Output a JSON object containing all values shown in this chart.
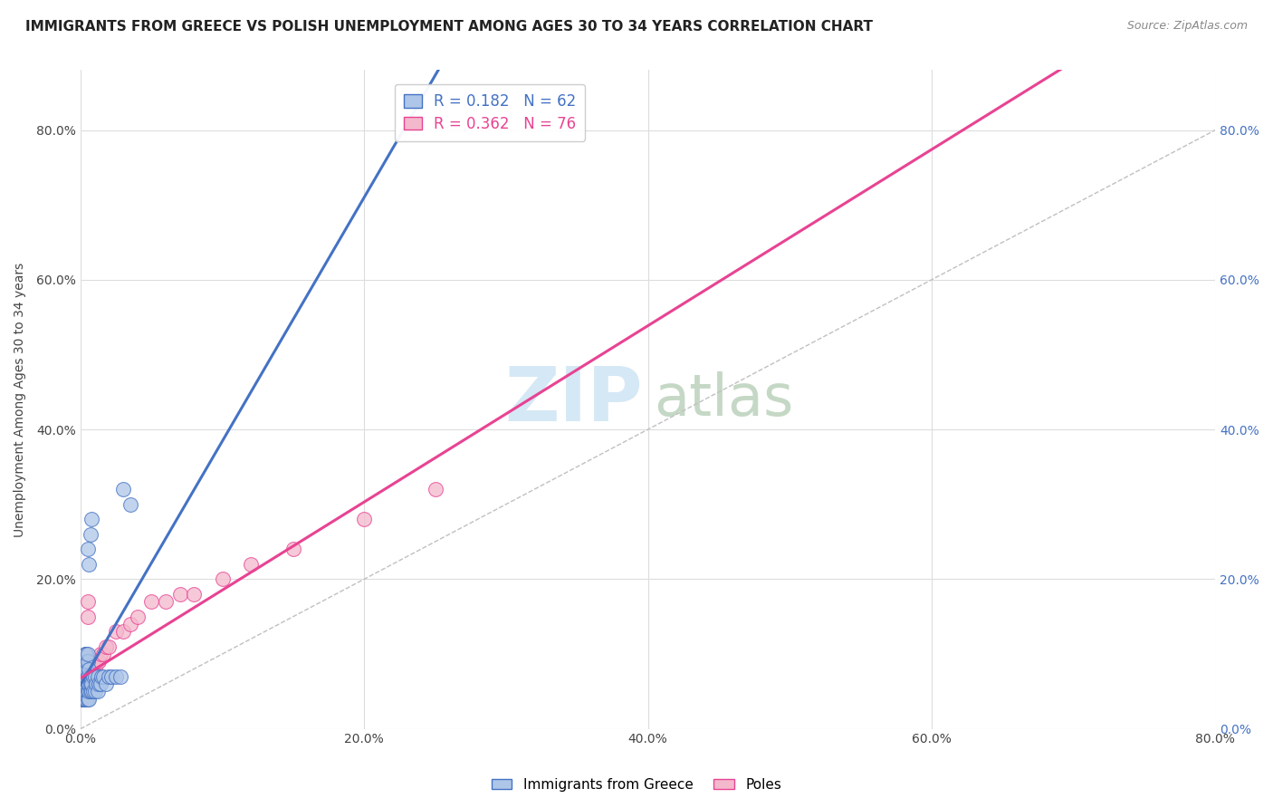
{
  "title": "IMMIGRANTS FROM GREECE VS POLISH UNEMPLOYMENT AMONG AGES 30 TO 34 YEARS CORRELATION CHART",
  "source": "Source: ZipAtlas.com",
  "ylabel": "Unemployment Among Ages 30 to 34 years",
  "xlim": [
    0.0,
    0.8
  ],
  "ylim": [
    0.0,
    0.88
  ],
  "x_ticks": [
    0.0,
    0.2,
    0.4,
    0.6,
    0.8
  ],
  "y_ticks": [
    0.0,
    0.2,
    0.4,
    0.6,
    0.8
  ],
  "legend_entries": [
    {
      "label": "Immigrants from Greece",
      "color": "#aec6e8",
      "edge": "#4472c4",
      "R": "0.182",
      "N": "62"
    },
    {
      "label": "Poles",
      "color": "#f4b8cc",
      "edge": "#e84393",
      "R": "0.362",
      "N": "76"
    }
  ],
  "greece_line_color": "#4472c4",
  "poles_line_color": "#e84393",
  "diagonal_color": "#c0c0c0",
  "title_fontsize": 11,
  "source_fontsize": 9,
  "label_fontsize": 10,
  "tick_fontsize": 10,
  "legend_fontsize": 12,
  "watermark_zip_color": "#d5e8f5",
  "watermark_atlas_color": "#c5d8c5",
  "watermark_fontsize": 60,
  "greece_scatter_x": [
    0.001,
    0.001,
    0.001,
    0.001,
    0.001,
    0.002,
    0.002,
    0.002,
    0.002,
    0.002,
    0.002,
    0.003,
    0.003,
    0.003,
    0.003,
    0.003,
    0.003,
    0.003,
    0.004,
    0.004,
    0.004,
    0.004,
    0.004,
    0.004,
    0.004,
    0.005,
    0.005,
    0.005,
    0.005,
    0.005,
    0.005,
    0.005,
    0.006,
    0.006,
    0.006,
    0.006,
    0.006,
    0.007,
    0.007,
    0.007,
    0.007,
    0.008,
    0.008,
    0.008,
    0.009,
    0.009,
    0.01,
    0.01,
    0.011,
    0.012,
    0.012,
    0.013,
    0.014,
    0.015,
    0.016,
    0.018,
    0.02,
    0.022,
    0.025,
    0.028,
    0.03,
    0.035
  ],
  "greece_scatter_y": [
    0.04,
    0.05,
    0.06,
    0.07,
    0.08,
    0.04,
    0.05,
    0.06,
    0.07,
    0.08,
    0.09,
    0.04,
    0.05,
    0.06,
    0.07,
    0.08,
    0.09,
    0.1,
    0.04,
    0.05,
    0.06,
    0.07,
    0.08,
    0.09,
    0.1,
    0.04,
    0.05,
    0.06,
    0.07,
    0.09,
    0.1,
    0.24,
    0.04,
    0.05,
    0.06,
    0.08,
    0.22,
    0.05,
    0.06,
    0.07,
    0.26,
    0.05,
    0.06,
    0.28,
    0.05,
    0.07,
    0.05,
    0.07,
    0.06,
    0.05,
    0.07,
    0.06,
    0.06,
    0.07,
    0.07,
    0.06,
    0.07,
    0.07,
    0.07,
    0.07,
    0.32,
    0.3
  ],
  "poles_scatter_x": [
    0.001,
    0.001,
    0.001,
    0.001,
    0.001,
    0.001,
    0.001,
    0.001,
    0.001,
    0.001,
    0.002,
    0.002,
    0.002,
    0.002,
    0.002,
    0.002,
    0.002,
    0.002,
    0.002,
    0.002,
    0.003,
    0.003,
    0.003,
    0.003,
    0.003,
    0.003,
    0.003,
    0.003,
    0.003,
    0.003,
    0.004,
    0.004,
    0.004,
    0.004,
    0.004,
    0.004,
    0.004,
    0.004,
    0.004,
    0.004,
    0.005,
    0.005,
    0.005,
    0.005,
    0.005,
    0.005,
    0.006,
    0.006,
    0.006,
    0.007,
    0.007,
    0.008,
    0.008,
    0.009,
    0.009,
    0.01,
    0.011,
    0.012,
    0.013,
    0.014,
    0.016,
    0.018,
    0.02,
    0.025,
    0.03,
    0.035,
    0.04,
    0.05,
    0.06,
    0.07,
    0.08,
    0.1,
    0.12,
    0.15,
    0.2,
    0.25
  ],
  "poles_scatter_y": [
    0.04,
    0.04,
    0.04,
    0.05,
    0.05,
    0.05,
    0.06,
    0.06,
    0.07,
    0.07,
    0.04,
    0.04,
    0.05,
    0.05,
    0.06,
    0.06,
    0.07,
    0.07,
    0.08,
    0.08,
    0.04,
    0.04,
    0.05,
    0.05,
    0.06,
    0.06,
    0.07,
    0.07,
    0.08,
    0.09,
    0.04,
    0.05,
    0.05,
    0.06,
    0.06,
    0.07,
    0.07,
    0.08,
    0.08,
    0.1,
    0.05,
    0.06,
    0.07,
    0.08,
    0.15,
    0.17,
    0.06,
    0.07,
    0.08,
    0.07,
    0.08,
    0.07,
    0.08,
    0.07,
    0.09,
    0.08,
    0.09,
    0.09,
    0.09,
    0.1,
    0.1,
    0.11,
    0.11,
    0.13,
    0.13,
    0.14,
    0.15,
    0.17,
    0.17,
    0.18,
    0.18,
    0.2,
    0.22,
    0.24,
    0.28,
    0.32
  ]
}
